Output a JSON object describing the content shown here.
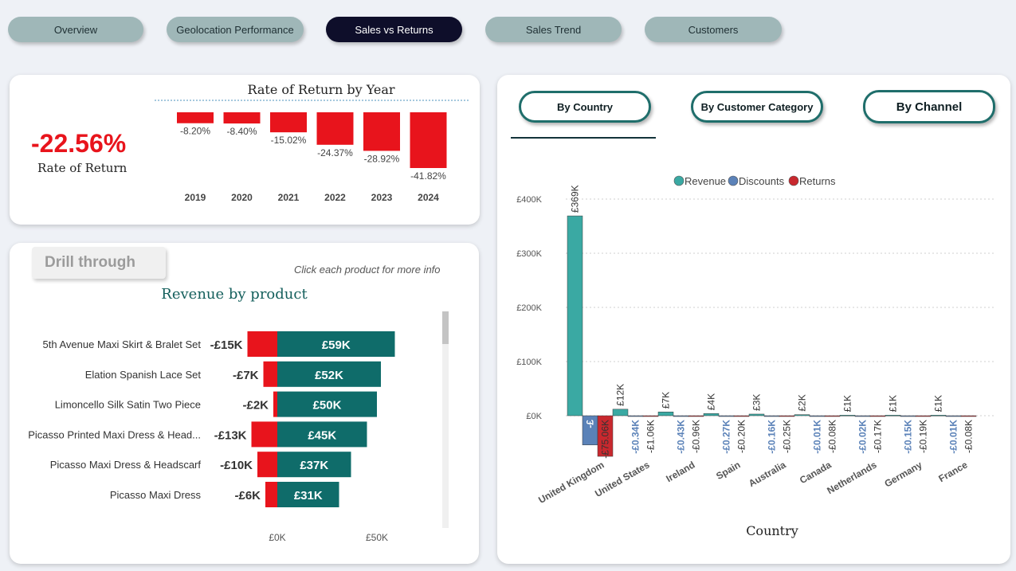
{
  "nav": {
    "tabs": [
      {
        "label": "Overview",
        "active": false
      },
      {
        "label": "Geolocation Performance",
        "active": false
      },
      {
        "label": "Sales vs Returns",
        "active": true
      },
      {
        "label": "Sales Trend",
        "active": false
      },
      {
        "label": "Customers",
        "active": false
      }
    ]
  },
  "kpi": {
    "value": "-22.56%",
    "label": "Rate of Return"
  },
  "colors": {
    "accent_red": "#e8141c",
    "teal_dark": "#0f6c6a",
    "revenue": "#3aa9a3",
    "discounts": "#5b82b8",
    "returns": "#c8282e",
    "nav_active": "#0e0e2a",
    "nav_inactive": "#9fb7b8"
  },
  "drill": {
    "label": "Drill through",
    "hint": "Click each product for more info"
  },
  "right_panel": {
    "buttons": {
      "by_country": "By Country",
      "by_customer_category": "By Customer Category",
      "by_channel": "By Channel"
    }
  },
  "chart_data": [
    {
      "type": "bar",
      "title": "Rate of Return by Year",
      "categories": [
        "2019",
        "2020",
        "2021",
        "2022",
        "2023",
        "2024"
      ],
      "values": [
        -8.2,
        -8.4,
        -15.02,
        -24.37,
        -28.92,
        -41.82
      ],
      "labels": [
        "-8.20%",
        "-8.40%",
        "-15.02%",
        "-24.37%",
        "-28.92%",
        "-41.82%"
      ],
      "ylim": [
        -45,
        0
      ],
      "color": "#e8141c"
    },
    {
      "type": "bar",
      "orientation": "horizontal",
      "title": "Revenue by product",
      "categories": [
        "5th Avenue Maxi Skirt & Bralet Set",
        "Elation Spanish Lace Set",
        "Limoncello Silk Satin Two Piece",
        "Picasso Printed Maxi Dress & Head...",
        "Picasso Maxi Dress & Headscarf",
        "Picasso Maxi Dress"
      ],
      "series": [
        {
          "values": [
            59,
            52,
            50,
            45,
            37,
            31
          ],
          "labels": [
            "£59K",
            "£52K",
            "£50K",
            "£45K",
            "£37K",
            "£31K"
          ],
          "color": "#0f6c6a"
        },
        {
          "values": [
            -15,
            -7,
            -2,
            -13,
            -10,
            -6
          ],
          "labels": [
            "-£15K",
            "-£7K",
            "-£2K",
            "-£13K",
            "-£10K",
            "-£6K"
          ],
          "color": "#e8141c"
        }
      ],
      "x_ticks": [
        "£0K",
        "£50K"
      ],
      "xlim": [
        -15,
        65
      ]
    },
    {
      "type": "bar",
      "xlabel": "Country",
      "categories": [
        "United Kingdom",
        "United States",
        "Ireland",
        "Spain",
        "Australia",
        "Canada",
        "Netherlands",
        "Germany",
        "France"
      ],
      "legend": [
        "Revenue",
        "Discounts",
        "Returns"
      ],
      "legend_position": "top-center",
      "series": [
        {
          "name": "Revenue",
          "values": [
            369,
            12,
            7,
            4,
            3,
            2,
            1,
            1,
            1
          ],
          "labels": [
            "£369K",
            "£12K",
            "£7K",
            "£4K",
            "£3K",
            "£2K",
            "£1K",
            "£1K",
            "£1K"
          ]
        },
        {
          "name": "Discounts",
          "values": [
            -54,
            -0.34,
            -0.43,
            -0.27,
            -0.16,
            -0.01,
            -0.02,
            -0.15,
            -0.01
          ],
          "labels": [
            "-£",
            "-£0.34K",
            "-£0.43K",
            "-£0.27K",
            "-£0.16K",
            "-£0.01K",
            "-£0.02K",
            "-£0.15K",
            "-£0.01K"
          ]
        },
        {
          "name": "Returns",
          "values": [
            -75.06,
            -1.06,
            -0.96,
            -0.2,
            -0.25,
            -0.08,
            -0.17,
            -0.19,
            -0.08
          ],
          "labels": [
            "-£75.06K",
            "-£1.06K",
            "-£0.96K",
            "-£0.20K",
            "-£0.25K",
            "-£0.08K",
            "-£0.17K",
            "-£0.19K",
            "-£0.08K"
          ]
        }
      ],
      "y_ticks": [
        "£0K",
        "£100K",
        "£200K",
        "£300K",
        "£400K"
      ],
      "ylim": [
        -75,
        400
      ],
      "grid": true
    }
  ]
}
